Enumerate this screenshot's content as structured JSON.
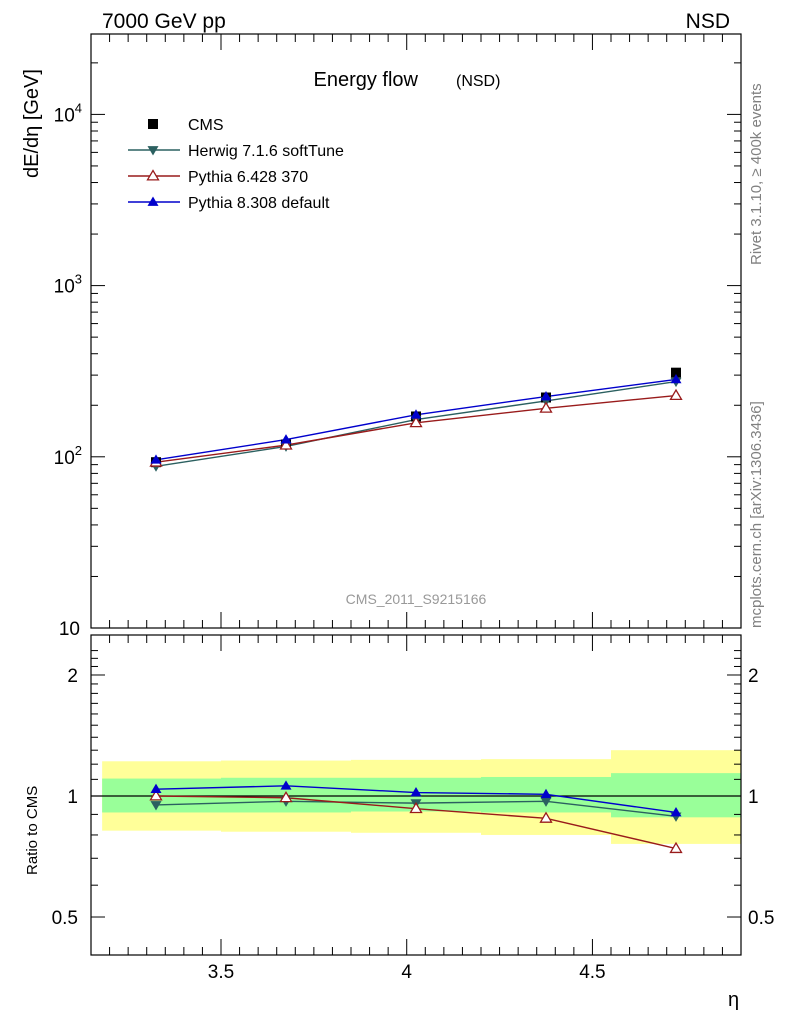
{
  "header": {
    "left": "7000 GeV pp",
    "right": "NSD"
  },
  "side": {
    "rivet": "Rivet 3.1.10, ≥ 400k events",
    "mcplots": "mcplots.cern.ch [arXiv:1306.3436]"
  },
  "chart_data": [
    {
      "type": "line",
      "title": "Energy flow",
      "title_suffix": "(NSD)",
      "ylabel": "dE/dη [GeV]",
      "watermark": "CMS_2011_S9215166",
      "ylog": true,
      "ylim": [
        10,
        30000
      ],
      "xlim": [
        3.15,
        4.9
      ],
      "y_tick_labels": [
        {
          "y": 10,
          "base": "10",
          "exp": ""
        },
        {
          "y": 100,
          "base": "10",
          "exp": "2"
        },
        {
          "y": 1000,
          "base": "10",
          "exp": "3"
        },
        {
          "y": 10000,
          "base": "10",
          "exp": "4"
        }
      ],
      "legend": [
        "CMS",
        "Herwig 7.1.6 softTune",
        "Pythia 6.428 370",
        "Pythia 8.308 default"
      ],
      "legend_position": "top-left",
      "x": [
        3.325,
        3.675,
        4.025,
        4.375,
        4.725
      ],
      "series": [
        {
          "name": "CMS",
          "marker": "square",
          "color": "#000000",
          "values": [
            93,
            118,
            172,
            222,
            310
          ]
        },
        {
          "name": "Herwig 7.1.6 softTune",
          "marker": "triangle-down",
          "color": "#2b6060",
          "values": [
            88,
            115,
            165,
            212,
            275
          ]
        },
        {
          "name": "Pythia 6.428 370",
          "marker": "triangle-up-open",
          "color": "#991b1b",
          "values": [
            93,
            117,
            158,
            192,
            228
          ]
        },
        {
          "name": "Pythia 8.308 default",
          "marker": "triangle-up",
          "color": "#0000cc",
          "values": [
            96,
            126,
            176,
            225,
            283
          ]
        }
      ]
    },
    {
      "type": "line",
      "ylabel": "Ratio to CMS",
      "xlabel": "η",
      "ylog": true,
      "ylim": [
        0.43,
        2.4
      ],
      "xlim": [
        3.15,
        4.9
      ],
      "x_ticks": [
        3.5,
        4,
        4.5
      ],
      "x_tick_labels": [
        "3.5",
        "4",
        "4.5"
      ],
      "y_ticks": [
        0.5,
        1,
        2
      ],
      "y_tick_labels": [
        "0.5",
        "1",
        "2"
      ],
      "x": [
        3.325,
        3.675,
        4.025,
        4.375,
        4.725
      ],
      "bands": {
        "x_edges": [
          3.18,
          3.5,
          3.85,
          4.2,
          4.55,
          4.9
        ],
        "stat": {
          "color": "#99ff99",
          "low": [
            0.91,
            0.91,
            0.915,
            0.91,
            0.885
          ],
          "high": [
            1.105,
            1.11,
            1.11,
            1.115,
            1.14
          ]
        },
        "total": {
          "color": "#ffff99",
          "low": [
            0.82,
            0.815,
            0.81,
            0.8,
            0.76
          ],
          "high": [
            1.22,
            1.225,
            1.23,
            1.235,
            1.3
          ]
        }
      },
      "series": [
        {
          "name": "Herwig 7.1.6 softTune",
          "marker": "triangle-down",
          "color": "#2b6060",
          "values": [
            0.95,
            0.97,
            0.96,
            0.97,
            0.89
          ]
        },
        {
          "name": "Pythia 6.428 370",
          "marker": "triangle-up-open",
          "color": "#991b1b",
          "values": [
            1.0,
            0.99,
            0.93,
            0.88,
            0.74
          ]
        },
        {
          "name": "Pythia 8.308 default",
          "marker": "triangle-up",
          "color": "#0000cc",
          "values": [
            1.04,
            1.06,
            1.02,
            1.01,
            0.91
          ]
        }
      ]
    }
  ]
}
